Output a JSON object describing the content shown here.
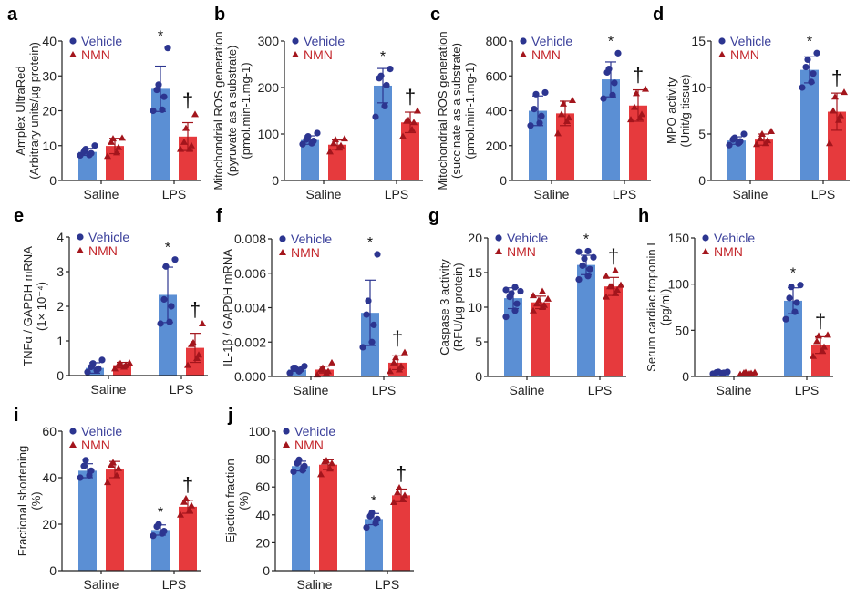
{
  "colors": {
    "vehicle_bar": "#5b8fd4",
    "vehicle_point": "#2c3590",
    "vehicle_text": "#3a3f9a",
    "nmn_bar": "#e63a3d",
    "nmn_point": "#a3151c",
    "nmn_text": "#c4282d",
    "axis": "#222222"
  },
  "legend": {
    "vehicle": "Vehicle",
    "nmn": "NMN",
    "vehicle_marker": "circle",
    "nmn_marker": "triangle"
  },
  "chart_data": [
    {
      "panel": "a",
      "type": "bar",
      "ylabel": [
        "Amplex UltraRed",
        "(Arbitrary units/µg protein)"
      ],
      "ylim": [
        0,
        40
      ],
      "ticks": [
        "0",
        "10",
        "20",
        "30",
        "40"
      ],
      "categories": [
        "Saline",
        "LPS"
      ],
      "series": [
        {
          "name": "Vehicle",
          "means": [
            8.2,
            26.3
          ],
          "sd": [
            1.0,
            6.5
          ],
          "points": [
            [
              7.2,
              7.3,
              7.8,
              8.2,
              9,
              10
            ],
            [
              20,
              20.3,
              24,
              26,
              27.5,
              38
            ]
          ]
        },
        {
          "name": "NMN",
          "means": [
            9.9,
            12.6
          ],
          "sd": [
            2.2,
            4.0
          ],
          "points": [
            [
              7,
              8,
              9.5,
              11,
              12,
              12.2
            ],
            [
              9,
              9,
              10,
              11,
              15,
              19
            ]
          ]
        }
      ],
      "annotations": [
        {
          "symbol": "*",
          "category": "LPS",
          "series": "Vehicle"
        },
        {
          "symbol": "†",
          "category": "LPS",
          "series": "NMN"
        }
      ]
    },
    {
      "panel": "b",
      "type": "bar",
      "ylabel": [
        "Mitochondrial ROS generation",
        "(pyruvate as a substrate)",
        "(pmol.min-1.mg-1)"
      ],
      "ylim": [
        0,
        300
      ],
      "ticks": [
        "0",
        "100",
        "200",
        "300"
      ],
      "categories": [
        "Saline",
        "LPS"
      ],
      "series": [
        {
          "name": "Vehicle",
          "means": [
            87,
            204
          ],
          "sd": [
            9,
            37
          ],
          "points": [
            [
              78,
              80,
              85,
              88,
              95,
              102
            ],
            [
              137,
              160,
              205,
              220,
              225,
              240
            ]
          ]
        },
        {
          "name": "NMN",
          "means": [
            77,
            125
          ],
          "sd": [
            10,
            22
          ],
          "points": [
            [
              62,
              70,
              75,
              80,
              88,
              90
            ],
            [
              95,
              110,
              125,
              128,
              130,
              150
            ]
          ]
        }
      ],
      "annotations": [
        {
          "symbol": "*",
          "category": "LPS",
          "series": "Vehicle"
        },
        {
          "symbol": "†",
          "category": "LPS",
          "series": "NMN"
        }
      ]
    },
    {
      "panel": "c",
      "type": "bar",
      "ylabel": [
        "Mitochondrial ROS generation",
        "(succinate as a substrate)",
        "(pmol.min-1.mg-1)"
      ],
      "ylim": [
        0,
        800
      ],
      "ticks": [
        "0",
        "200",
        "400",
        "600",
        "800"
      ],
      "categories": [
        "Saline",
        "LPS"
      ],
      "series": [
        {
          "name": "Vehicle",
          "means": [
            400,
            580
          ],
          "sd": [
            85,
            100
          ],
          "points": [
            [
              315,
              330,
              370,
              410,
              495,
              505
            ],
            [
              470,
              490,
              560,
              620,
              640,
              730
            ]
          ]
        },
        {
          "name": "NMN",
          "means": [
            385,
            430
          ],
          "sd": [
            70,
            90
          ],
          "points": [
            [
              270,
              340,
              360,
              380,
              440,
              460
            ],
            [
              350,
              360,
              380,
              420,
              500,
              525
            ]
          ]
        }
      ],
      "annotations": [
        {
          "symbol": "*",
          "category": "LPS",
          "series": "Vehicle"
        },
        {
          "symbol": "†",
          "category": "LPS",
          "series": "NMN"
        }
      ]
    },
    {
      "panel": "d",
      "type": "bar",
      "ylabel": [
        "MPO activity",
        "(Unit/g tissue)"
      ],
      "ylim": [
        0,
        15
      ],
      "ticks": [
        "0",
        "5",
        "10",
        "15"
      ],
      "categories": [
        "Saline",
        "LPS"
      ],
      "series": [
        {
          "name": "Vehicle",
          "means": [
            4.3,
            11.9
          ],
          "sd": [
            0.4,
            1.4
          ],
          "points": [
            [
              3.8,
              4.0,
              4.2,
              4.4,
              4.6,
              5.0
            ],
            [
              10,
              10.6,
              11.5,
              12.2,
              13,
              13.7
            ]
          ]
        },
        {
          "name": "NMN",
          "means": [
            4.4,
            7.4
          ],
          "sd": [
            0.6,
            2.0
          ],
          "points": [
            [
              3.9,
              4.0,
              4.3,
              4.5,
              5.0,
              5.3
            ],
            [
              4.0,
              6.5,
              7,
              7.5,
              9,
              9.5
            ]
          ]
        }
      ],
      "annotations": [
        {
          "symbol": "*",
          "category": "LPS",
          "series": "Vehicle"
        },
        {
          "symbol": "†",
          "category": "LPS",
          "series": "NMN"
        }
      ]
    },
    {
      "panel": "e",
      "type": "bar",
      "ylabel": [
        "TNFα / GAPDH mRNA",
        "(1× 10⁻⁴)"
      ],
      "ylim": [
        0,
        4
      ],
      "ticks": [
        "0",
        "1",
        "2",
        "3",
        "4"
      ],
      "categories": [
        "Saline",
        "LPS"
      ],
      "series": [
        {
          "name": "Vehicle",
          "means": [
            0.22,
            2.33
          ],
          "sd": [
            0.15,
            0.8
          ],
          "points": [
            [
              0.1,
              0.15,
              0.2,
              0.25,
              0.35,
              0.45
            ],
            [
              1.5,
              1.55,
              2.0,
              2.2,
              3.15,
              3.35
            ]
          ]
        },
        {
          "name": "NMN",
          "means": [
            0.3,
            0.8
          ],
          "sd": [
            0.08,
            0.42
          ],
          "points": [
            [
              0.2,
              0.25,
              0.3,
              0.32,
              0.35,
              0.37
            ],
            [
              0.3,
              0.5,
              0.6,
              0.9,
              0.95,
              1.5
            ]
          ]
        }
      ],
      "annotations": [
        {
          "symbol": "*",
          "category": "LPS",
          "series": "Vehicle"
        },
        {
          "symbol": "†",
          "category": "LPS",
          "series": "NMN"
        }
      ]
    },
    {
      "panel": "f",
      "type": "bar",
      "ylabel": [
        "IL-1β / GAPDH mRNA"
      ],
      "ylim": [
        0,
        0.008
      ],
      "ticks": [
        "0.000",
        "0.002",
        "0.004",
        "0.006",
        "0.008"
      ],
      "categories": [
        "Saline",
        "LPS"
      ],
      "series": [
        {
          "name": "Vehicle",
          "means": [
            0.0004,
            0.0037
          ],
          "sd": [
            0.0001,
            0.0019
          ],
          "points": [
            [
              0.0002,
              0.0003,
              0.0004,
              0.0005,
              0.0005,
              0.0006
            ],
            [
              0.0017,
              0.002,
              0.003,
              0.0036,
              0.0044,
              0.0071
            ]
          ]
        },
        {
          "name": "NMN",
          "means": [
            0.0004,
            0.0008
          ],
          "sd": [
            0.0002,
            0.0004
          ],
          "points": [
            [
              0.0001,
              0.0002,
              0.0003,
              0.0004,
              0.0005,
              0.0008
            ],
            [
              0.0003,
              0.0004,
              0.0006,
              0.0008,
              0.0011,
              0.0014
            ]
          ]
        }
      ],
      "annotations": [
        {
          "symbol": "*",
          "category": "LPS",
          "series": "Vehicle"
        },
        {
          "symbol": "†",
          "category": "LPS",
          "series": "NMN"
        }
      ]
    },
    {
      "panel": "g",
      "type": "bar",
      "ylabel": [
        "Caspase 3 activity",
        "(RFU/µg protein)"
      ],
      "ylim": [
        0,
        20
      ],
      "ticks": [
        "0",
        "5",
        "10",
        "15",
        "20"
      ],
      "categories": [
        "Saline",
        "LPS"
      ],
      "series": [
        {
          "name": "Vehicle",
          "means": [
            11.3,
            16.1
          ],
          "sd": [
            1.5,
            1.4
          ],
          "points": [
            [
              8.6,
              9.5,
              10.5,
              11.5,
              12,
              12.3,
              12.5,
              12.9
            ],
            [
              14,
              14.5,
              15.5,
              16,
              17,
              17.2,
              18,
              18.1
            ]
          ]
        },
        {
          "name": "NMN",
          "means": [
            10.7,
            13.0
          ],
          "sd": [
            0.9,
            1.3
          ],
          "points": [
            [
              9.5,
              10,
              10.3,
              10.5,
              11,
              11.2,
              11.7,
              12.3
            ],
            [
              11.5,
              12,
              12.5,
              13,
              13,
              13.2,
              14.5,
              15.3
            ]
          ]
        }
      ],
      "annotations": [
        {
          "symbol": "*",
          "category": "LPS",
          "series": "Vehicle"
        },
        {
          "symbol": "†",
          "category": "LPS",
          "series": "NMN"
        }
      ]
    },
    {
      "panel": "h",
      "type": "bar",
      "ylabel": [
        "Serum cardiac troponin I",
        "(pg/ml)"
      ],
      "ylim": [
        0,
        150
      ],
      "ticks": [
        "0",
        "50",
        "100",
        "150"
      ],
      "categories": [
        "Saline",
        "LPS"
      ],
      "series": [
        {
          "name": "Vehicle",
          "means": [
            4,
            82
          ],
          "sd": [
            1,
            14
          ],
          "points": [
            [
              3,
              3.5,
              4,
              4.5,
              5,
              5
            ],
            [
              62,
              70,
              80,
              85,
              97,
              99
            ]
          ]
        },
        {
          "name": "NMN",
          "means": [
            3.5,
            34
          ],
          "sd": [
            1,
            9
          ],
          "points": [
            [
              2.5,
              3,
              3.5,
              4,
              4.5,
              4.5
            ],
            [
              22,
              28,
              32,
              38,
              44,
              45
            ]
          ]
        }
      ],
      "annotations": [
        {
          "symbol": "*",
          "category": "LPS",
          "series": "Vehicle"
        },
        {
          "symbol": "†",
          "category": "LPS",
          "series": "NMN"
        }
      ]
    },
    {
      "panel": "i",
      "type": "bar",
      "ylabel": [
        "Fractional shortening",
        "(%)"
      ],
      "ylim": [
        0,
        60
      ],
      "ticks": [
        "0",
        "20",
        "40",
        "60"
      ],
      "categories": [
        "Saline",
        "LPS"
      ],
      "series": [
        {
          "name": "Vehicle",
          "means": [
            43,
            17.5
          ],
          "sd": [
            3,
            2.2
          ],
          "points": [
            [
              40,
              41,
              43,
              45,
              47.5
            ],
            [
              15,
              16,
              17,
              19,
              20
            ]
          ]
        },
        {
          "name": "NMN",
          "means": [
            43.5,
            27.5
          ],
          "sd": [
            3.5,
            2.8
          ],
          "points": [
            [
              38,
              41,
              44,
              45.5,
              46.5
            ],
            [
              24,
              26,
              28,
              29.5,
              31
            ]
          ]
        }
      ],
      "annotations": [
        {
          "symbol": "*",
          "category": "LPS",
          "series": "Vehicle"
        },
        {
          "symbol": "†",
          "category": "LPS",
          "series": "NMN"
        }
      ]
    },
    {
      "panel": "j",
      "type": "bar",
      "ylabel": [
        "Ejection fraction",
        "(%)"
      ],
      "ylim": [
        0,
        100
      ],
      "ticks": [
        "0",
        "20",
        "40",
        "60",
        "80",
        "100"
      ],
      "categories": [
        "Saline",
        "LPS"
      ],
      "series": [
        {
          "name": "Vehicle",
          "means": [
            75,
            37
          ],
          "sd": [
            3.5,
            4
          ],
          "points": [
            [
              71,
              72,
              75,
              77,
              79.5
            ],
            [
              31,
              34,
              37,
              39,
              41.5
            ]
          ]
        },
        {
          "name": "NMN",
          "means": [
            76,
            54
          ],
          "sd": [
            3.5,
            4.5
          ],
          "points": [
            [
              69,
              73,
              77,
              78,
              79
            ],
            [
              49,
              51,
              54,
              56,
              59.5
            ]
          ]
        }
      ],
      "annotations": [
        {
          "symbol": "*",
          "category": "LPS",
          "series": "Vehicle"
        },
        {
          "symbol": "†",
          "category": "LPS",
          "series": "NMN"
        }
      ]
    }
  ]
}
